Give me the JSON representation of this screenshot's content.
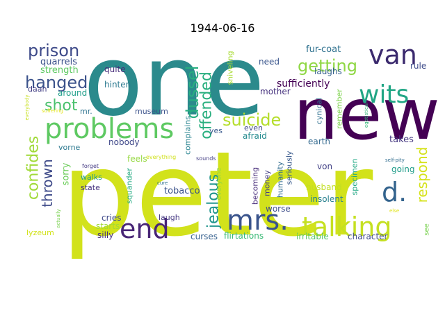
{
  "chart_data": {
    "type": "wordcloud",
    "title": "1944-06-16",
    "words": [
      {
        "text": "peter",
        "color": "#d2e21b"
      },
      {
        "text": "one",
        "color": "#2b8a8c"
      },
      {
        "text": "new",
        "color": "#440154"
      },
      {
        "text": "van",
        "color": "#3b2a6e"
      },
      {
        "text": "problems",
        "color": "#5ec962"
      },
      {
        "text": "wits",
        "color": "#21a685"
      },
      {
        "text": "end",
        "color": "#482576"
      },
      {
        "text": "mrs.",
        "color": "#3a548c"
      },
      {
        "text": "talking",
        "color": "#c5e021"
      },
      {
        "text": "d.",
        "color": "#33638d"
      },
      {
        "text": "prison",
        "color": "#3e4a89"
      },
      {
        "text": "getting",
        "color": "#8fd744"
      },
      {
        "text": "hanged",
        "color": "#3b528b"
      },
      {
        "text": "dussel",
        "color": "#28ae80"
      },
      {
        "text": "suicide",
        "color": "#b5de2b"
      },
      {
        "text": "offended",
        "color": "#29af7f"
      },
      {
        "text": "shot",
        "color": "#4ac16d"
      },
      {
        "text": "confides",
        "color": "#a0da39"
      },
      {
        "text": "thrown",
        "color": "#3e4a89"
      },
      {
        "text": "jealous",
        "color": "#1f948c"
      },
      {
        "text": "respond",
        "color": "#d5e21a"
      },
      {
        "text": "fur-coat",
        "color": "#2d708e"
      },
      {
        "text": "quarrels",
        "color": "#3b518b"
      },
      {
        "text": "strength",
        "color": "#5ec962"
      },
      {
        "text": "quite",
        "color": "#472d7b"
      },
      {
        "text": "laughs",
        "color": "#34608d"
      },
      {
        "text": "need",
        "color": "#39558c"
      },
      {
        "text": "rule",
        "color": "#3e4c8a"
      },
      {
        "text": "sufficiently",
        "color": "#440154"
      },
      {
        "text": "hinten",
        "color": "#2a788e"
      },
      {
        "text": "daan",
        "color": "#433e85"
      },
      {
        "text": "around",
        "color": "#1f9e89"
      },
      {
        "text": "mother",
        "color": "#46327e"
      },
      {
        "text": "sniveling",
        "color": "#a8db34"
      },
      {
        "text": "complains",
        "color": "#26828e"
      },
      {
        "text": "museum",
        "color": "#3b528b"
      },
      {
        "text": "mr.",
        "color": "#2c728e"
      },
      {
        "text": "everybody",
        "color": "#c8e020"
      },
      {
        "text": "suffering",
        "color": "#e5e419"
      },
      {
        "text": "feels",
        "color": "#95d840"
      },
      {
        "text": "everything",
        "color": "#d0e11c"
      },
      {
        "text": "cynical",
        "color": "#2e6f8e"
      },
      {
        "text": "remember",
        "color": "#7fd34e"
      },
      {
        "text": "yes",
        "color": "#38588c"
      },
      {
        "text": "even",
        "color": "#3f4788"
      },
      {
        "text": "afraid",
        "color": "#238a8d"
      },
      {
        "text": "egotistical",
        "color": "#35b779"
      },
      {
        "text": "earth",
        "color": "#31688e"
      },
      {
        "text": "takes",
        "color": "#453781"
      },
      {
        "text": "vorne",
        "color": "#2a778e"
      },
      {
        "text": "nobody",
        "color": "#3f4889"
      },
      {
        "text": "sorry",
        "color": "#6ccd5a"
      },
      {
        "text": "forget",
        "color": "#443a83"
      },
      {
        "text": "walks",
        "color": "#1f998a"
      },
      {
        "text": "state",
        "color": "#46327e"
      },
      {
        "text": "squander",
        "color": "#25ab82"
      },
      {
        "text": "tobacco",
        "color": "#3b528b"
      },
      {
        "text": "sounds",
        "color": "#433d84"
      },
      {
        "text": "everyone",
        "color": "#93d741"
      },
      {
        "text": "cure",
        "color": "#2e6e8e"
      },
      {
        "text": "becoming",
        "color": "#472c7a"
      },
      {
        "text": "money",
        "color": "#433e85"
      },
      {
        "text": "humanity",
        "color": "#2f6b8e"
      },
      {
        "text": "seriously",
        "color": "#38598c"
      },
      {
        "text": "specimen",
        "color": "#22a884"
      },
      {
        "text": "von",
        "color": "#424186"
      },
      {
        "text": "going",
        "color": "#1e9c89"
      },
      {
        "text": "self-pity",
        "color": "#2f6c8e"
      },
      {
        "text": "husband",
        "color": "#c2df23"
      },
      {
        "text": "insolent",
        "color": "#27808e"
      },
      {
        "text": "worse",
        "color": "#3d4d8a"
      },
      {
        "text": "cries",
        "color": "#3e4989"
      },
      {
        "text": "laugh",
        "color": "#453882"
      },
      {
        "text": "actually",
        "color": "#7ad151"
      },
      {
        "text": "starts",
        "color": "#a2da37"
      },
      {
        "text": "silly",
        "color": "#46307e"
      },
      {
        "text": "curses",
        "color": "#355f8d"
      },
      {
        "text": "flirtations",
        "color": "#3aba76"
      },
      {
        "text": "irritable",
        "color": "#56c667"
      },
      {
        "text": "character",
        "color": "#3e4a89"
      },
      {
        "text": "see",
        "color": "#7ad151"
      },
      {
        "text": "else",
        "color": "#e0e318"
      },
      {
        "text": "lyzeum",
        "color": "#d2e21b"
      }
    ]
  }
}
